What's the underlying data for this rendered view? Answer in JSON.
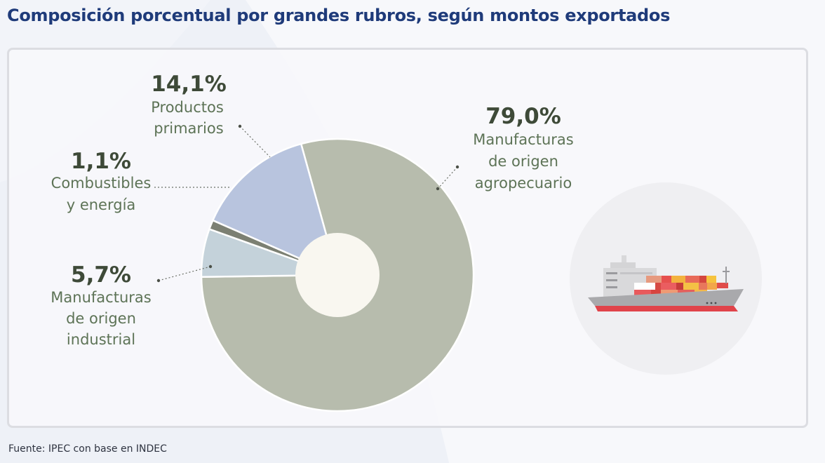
{
  "title": "Composición porcentual por grandes rubros, según montos exportados",
  "source": "Fuente: IPEC con base en INDEC",
  "icons": {
    "illustration": "cargo-ship-icon"
  },
  "colors": {
    "title": "#1f3b7a",
    "value_text": "#3e4a38",
    "label_text": "#5d7356",
    "slices": [
      "#b7bcad",
      "#c4d2da",
      "#7c8073",
      "#b8c4de"
    ]
  },
  "chart_data": {
    "type": "pie",
    "title": "Composición porcentual por grandes rubros, según montos exportados",
    "unit": "%",
    "slices": [
      {
        "value": 79.0,
        "value_label": "79,0%",
        "label_lines": [
          "Manufacturas",
          "de origen",
          "agropecuario"
        ],
        "color": "#b7bcad"
      },
      {
        "value": 5.7,
        "value_label": "5,7%",
        "label_lines": [
          "Manufacturas",
          "de origen",
          "industrial"
        ],
        "color": "#c4d2da"
      },
      {
        "value": 1.1,
        "value_label": "1,1%",
        "label_lines": [
          "Combustibles",
          "y energía"
        ],
        "color": "#7c8073"
      },
      {
        "value": 14.1,
        "value_label": "14,1%",
        "label_lines": [
          "Productos",
          "primarios"
        ],
        "color": "#b8c4de"
      }
    ]
  }
}
